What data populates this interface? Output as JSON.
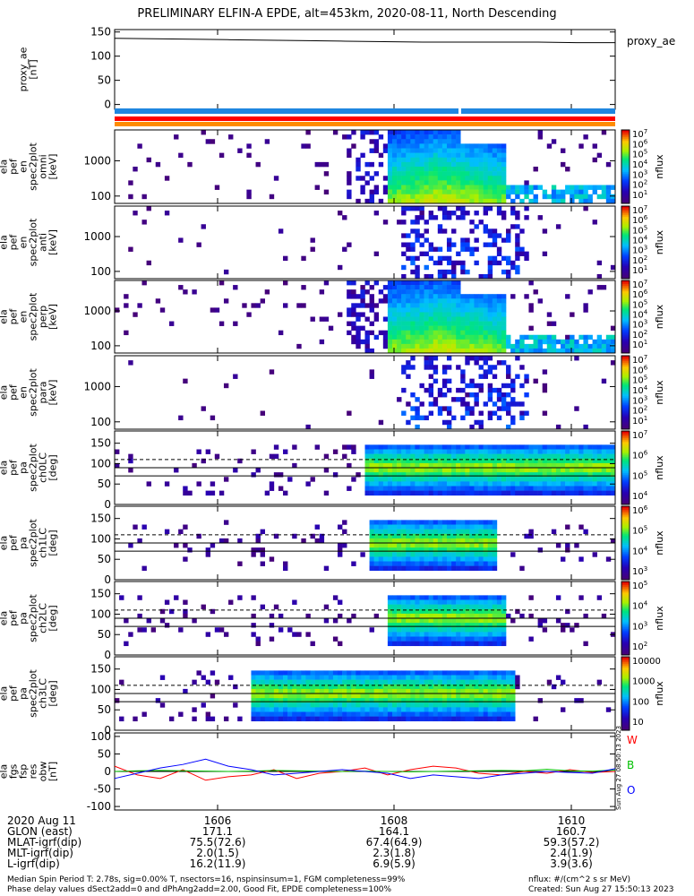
{
  "title": "PRELIMINARY ELFIN-A EPDE, alt=453km, 2020-08-11, North Descending",
  "colors": {
    "bar_blue": "#1f86e0",
    "bar_red": "#ff0000",
    "bar_orange": "#ff8c00",
    "background": "#ffffff",
    "db_x": "#ff0000",
    "db_y": "#00c000",
    "db_z": "#0000ff"
  },
  "chart_data": [
    {
      "type": "line",
      "id": "proxy_ae",
      "ylabel": [
        "proxy_ae",
        "[nT]"
      ],
      "legend": "proxy_ae",
      "ylim": [
        -10,
        155
      ],
      "yticks": [
        "150",
        "100",
        "50",
        "0"
      ],
      "x_minutes": [
        0,
        0.5,
        1.0,
        1.5,
        2.0,
        2.5,
        3.0,
        3.5,
        4.0,
        4.5,
        5.0,
        5.5,
        6.0,
        6.5
      ],
      "values": [
        137,
        136,
        135,
        134,
        133,
        132,
        131,
        130,
        129,
        129,
        129,
        129,
        128,
        128
      ]
    },
    {
      "type": "heatmap",
      "id": "pef_en_spec2plot_omni",
      "ylabel": [
        "ela",
        "pef",
        "en",
        "spec2plot",
        "omni",
        "[keV]"
      ],
      "yticks": [
        "1000",
        "100"
      ],
      "colorbar": [
        "10^7",
        "10^6",
        "10^5",
        "10^4",
        "10^3",
        "10^2",
        "10^1"
      ],
      "zlabel": "nflux"
    },
    {
      "type": "heatmap",
      "id": "pef_en_spec2plot_anti",
      "ylabel": [
        "ela",
        "pef",
        "en",
        "spec2plot",
        "anti",
        "[keV]"
      ],
      "yticks": [
        "1000",
        "100"
      ],
      "colorbar": [
        "10^7",
        "10^6",
        "10^5",
        "10^4",
        "10^3",
        "10^2",
        "10^1"
      ],
      "zlabel": "nflux"
    },
    {
      "type": "heatmap",
      "id": "pef_en_spec2plot_perp",
      "ylabel": [
        "ela",
        "pef",
        "en",
        "spec2plot",
        "perp",
        "[keV]"
      ],
      "yticks": [
        "1000",
        "100"
      ],
      "colorbar": [
        "10^7",
        "10^6",
        "10^5",
        "10^4",
        "10^3",
        "10^2",
        "10^1"
      ],
      "zlabel": "nflux"
    },
    {
      "type": "heatmap",
      "id": "pef_en_spec2plot_para",
      "ylabel": [
        "ela",
        "pef",
        "en",
        "spec2plot",
        "para",
        "[keV]"
      ],
      "yticks": [
        "1000",
        "100"
      ],
      "colorbar": [
        "10^7",
        "10^6",
        "10^5",
        "10^4",
        "10^3",
        "10^2",
        "10^1"
      ],
      "zlabel": "nflux"
    },
    {
      "type": "heatmap",
      "id": "pef_pa_spec2plot_ch0LC",
      "ylabel": [
        "ela",
        "pef",
        "pa",
        "spec2plot",
        "ch0LC",
        "[deg]"
      ],
      "yticks": [
        "150",
        "100",
        "50",
        "0"
      ],
      "colorbar": [
        "10^7",
        "10^6",
        "10^5",
        "10^4"
      ],
      "zlabel": "nflux"
    },
    {
      "type": "heatmap",
      "id": "pef_pa_spec2plot_ch1LC",
      "ylabel": [
        "ela",
        "pef",
        "pa",
        "spec2plot",
        "ch1LC",
        "[deg]"
      ],
      "yticks": [
        "150",
        "100",
        "50",
        "0"
      ],
      "colorbar": [
        "10^6",
        "10^5",
        "10^4",
        "10^3"
      ],
      "zlabel": "nflux"
    },
    {
      "type": "heatmap",
      "id": "pef_pa_spec2plot_ch2LC",
      "ylabel": [
        "ela",
        "pef",
        "pa",
        "spec2plot",
        "ch2LC",
        "[deg]"
      ],
      "yticks": [
        "150",
        "100",
        "50",
        "0"
      ],
      "colorbar": [
        "10^5",
        "10^4",
        "10^3",
        "10^2"
      ],
      "zlabel": "nflux"
    },
    {
      "type": "heatmap",
      "id": "pef_pa_spec2plot_ch3LC",
      "ylabel": [
        "ela",
        "pef",
        "pa",
        "spec2plot",
        "ch3LC",
        "[deg]"
      ],
      "yticks": [
        "150",
        "100",
        "50",
        "0"
      ],
      "colorbar": [
        "10000",
        "1000",
        "100",
        "10"
      ],
      "zlabel": "nflux"
    },
    {
      "type": "line",
      "id": "fgs_fsp_res_obw",
      "ylabel": [
        "ela",
        "fgs",
        "fsp",
        "res",
        "obw",
        "[nT]"
      ],
      "ylim": [
        -110,
        110
      ],
      "yticks": [
        "100",
        "50",
        "0",
        "-50",
        "-100"
      ],
      "legend_labels": [
        "W",
        "B",
        "O"
      ],
      "side_note": "Sun Aug 27 08:50:13 2023",
      "x_minutes": [
        0,
        0.3,
        0.6,
        0.9,
        1.2,
        1.5,
        1.8,
        2.1,
        2.4,
        2.7,
        3.0,
        3.3,
        3.6,
        3.9,
        4.2,
        4.5,
        4.8,
        5.1,
        5.4,
        5.7,
        6.0,
        6.3,
        6.6
      ],
      "series": [
        {
          "name": "W",
          "values": [
            15,
            -10,
            -20,
            5,
            -25,
            -15,
            -10,
            5,
            -20,
            -5,
            0,
            10,
            -10,
            5,
            15,
            10,
            -5,
            -10,
            0,
            -5,
            5,
            -3,
            0
          ]
        },
        {
          "name": "B",
          "values": [
            0,
            2,
            3,
            2,
            1,
            0,
            1,
            3,
            2,
            1,
            0,
            1,
            0,
            -1,
            0,
            1,
            2,
            3,
            2,
            6,
            2,
            1,
            4
          ]
        },
        {
          "name": "O",
          "values": [
            -20,
            -5,
            10,
            20,
            35,
            15,
            5,
            -10,
            -5,
            0,
            5,
            0,
            -5,
            -20,
            -10,
            -15,
            -20,
            -10,
            -5,
            0,
            -3,
            -5,
            8
          ]
        }
      ]
    }
  ],
  "x_axis": {
    "ticks": [
      "1606",
      "1608",
      "1610"
    ],
    "rows": [
      {
        "label": "2020 Aug 11",
        "values": [
          "1606",
          "1608",
          "1610"
        ]
      },
      {
        "label": "GLON (east)",
        "values": [
          "171.1",
          "164.1",
          "160.7"
        ]
      },
      {
        "label": "MLAT-igrf(dip)",
        "values": [
          "75.5(72.6)",
          "67.4(64.9)",
          "59.3(57.2)"
        ]
      },
      {
        "label": "MLT-igrf(dip)",
        "values": [
          "2.0(1.5)",
          "2.3(1.8)",
          "2.4(1.9)"
        ]
      },
      {
        "label": "L-igrf(dip)",
        "values": [
          "16.2(11.9)",
          "6.9(5.9)",
          "3.9(3.6)"
        ]
      }
    ]
  },
  "footer": {
    "line1": "Median Spin Period T: 2.78s, sig=0.00% T, nsectors=16, nspinsinsum=1, FGM completeness=99%",
    "line2": "Phase delay values dSect2add=0 and dPhAng2add=2.00, Good Fit, EPDE completeness=100%",
    "units": "nflux: #/(cm^2 s sr MeV)",
    "created": "Created: Sun Aug 27 15:50:13 2023"
  }
}
